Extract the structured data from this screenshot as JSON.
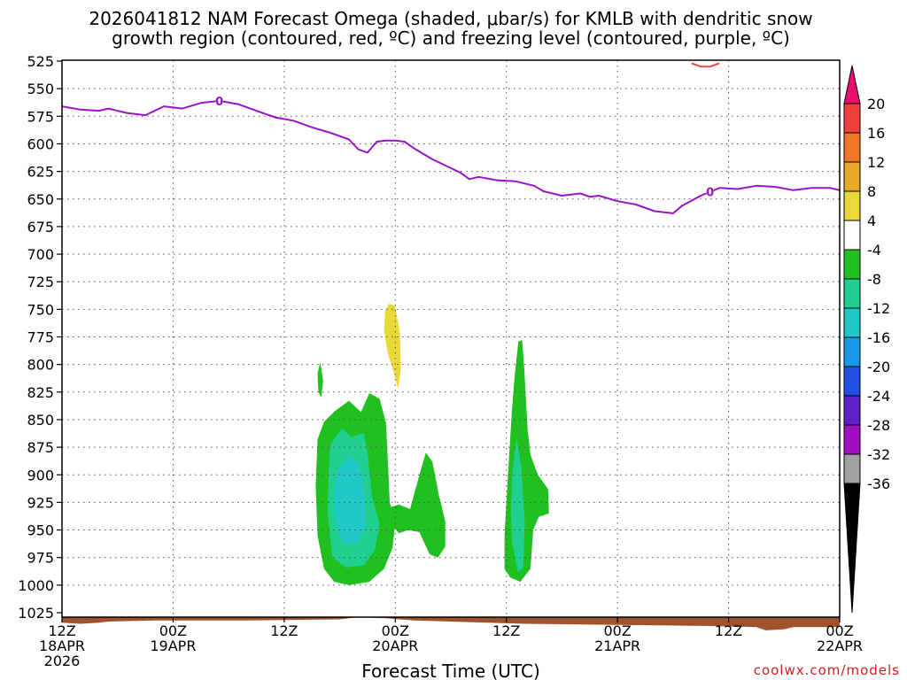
{
  "chart_data": {
    "type": "heatmap",
    "title_lines": [
      "2026041812 NAM Forecast Omega (shaded, μbar/s) for KMLB with dendritic snow",
      "growth region (contoured, red, ºC) and freezing level (contoured, purple, ºC)"
    ],
    "xlabel": "Forecast Time (UTC)",
    "credit": "coolwx.com/models",
    "x_hours_range": [
      0,
      84
    ],
    "y_pressure_range": [
      525,
      1025
    ],
    "y_ticks": [
      525,
      550,
      575,
      600,
      625,
      650,
      675,
      700,
      725,
      750,
      775,
      800,
      825,
      850,
      875,
      900,
      925,
      950,
      975,
      1000,
      1025
    ],
    "x_ticks": [
      {
        "hour": 0,
        "lines": [
          "12Z",
          "18APR",
          "2026"
        ]
      },
      {
        "hour": 12,
        "lines": [
          "00Z",
          "19APR"
        ]
      },
      {
        "hour": 24,
        "lines": [
          "12Z"
        ]
      },
      {
        "hour": 36,
        "lines": [
          "00Z",
          "20APR"
        ]
      },
      {
        "hour": 48,
        "lines": [
          "12Z"
        ]
      },
      {
        "hour": 60,
        "lines": [
          "00Z",
          "21APR"
        ]
      },
      {
        "hour": 72,
        "lines": [
          "12Z"
        ]
      },
      {
        "hour": 84,
        "lines": [
          "00Z",
          "22APR"
        ]
      }
    ],
    "colorbar": {
      "labels": [
        "20",
        "16",
        "12",
        "8",
        "4",
        "-4",
        "-8",
        "-12",
        "-16",
        "-20",
        "-24",
        "-28",
        "-32",
        "-36"
      ],
      "colors": [
        "#e8106e",
        "#f0403c",
        "#f07828",
        "#e8a828",
        "#e8d838",
        "#ffffff",
        "#20c020",
        "#20d090",
        "#20c8c8",
        "#1898e8",
        "#2050e0",
        "#6020c8",
        "#a010c0",
        "#a0a0a0",
        "#000000"
      ]
    },
    "freezing_level": {
      "color": "#9a14c8",
      "label": "0",
      "label_hours": [
        17,
        70
      ],
      "points": [
        [
          0,
          566
        ],
        [
          2,
          569
        ],
        [
          4,
          570
        ],
        [
          5,
          568
        ],
        [
          7,
          572
        ],
        [
          9,
          574
        ],
        [
          11,
          566
        ],
        [
          13,
          568
        ],
        [
          15,
          563
        ],
        [
          17,
          561
        ],
        [
          19,
          564
        ],
        [
          21,
          570
        ],
        [
          23,
          576
        ],
        [
          25,
          579
        ],
        [
          27,
          585
        ],
        [
          29,
          590
        ],
        [
          31,
          596
        ],
        [
          32,
          605
        ],
        [
          33,
          608
        ],
        [
          34,
          598
        ],
        [
          35,
          597
        ],
        [
          36,
          597
        ],
        [
          37,
          598
        ],
        [
          38,
          604
        ],
        [
          40,
          614
        ],
        [
          42,
          622
        ],
        [
          43,
          626
        ],
        [
          44,
          632
        ],
        [
          45,
          630
        ],
        [
          47,
          633
        ],
        [
          49,
          634
        ],
        [
          51,
          638
        ],
        [
          52,
          643
        ],
        [
          54,
          647
        ],
        [
          56,
          645
        ],
        [
          57,
          648
        ],
        [
          58,
          647
        ],
        [
          60,
          652
        ],
        [
          62,
          655
        ],
        [
          64,
          661
        ],
        [
          66,
          663
        ],
        [
          67,
          656
        ],
        [
          69,
          647
        ],
        [
          71,
          640
        ],
        [
          73,
          641
        ],
        [
          75,
          638
        ],
        [
          77,
          639
        ],
        [
          79,
          642
        ],
        [
          81,
          640
        ],
        [
          83,
          640
        ],
        [
          84,
          642
        ]
      ]
    },
    "dgz_contour": {
      "color": "#f04848",
      "points": [
        [
          68,
          527
        ],
        [
          69,
          530
        ],
        [
          70,
          530
        ],
        [
          71,
          527
        ]
      ]
    },
    "omega_areas": [
      {
        "value": -4,
        "color": "#20c020",
        "points": [
          [
            27.6,
            868
          ],
          [
            28.3,
            852
          ],
          [
            29.5,
            842
          ],
          [
            31.0,
            833
          ],
          [
            32.3,
            843
          ],
          [
            33.2,
            826
          ],
          [
            34.3,
            831
          ],
          [
            35.0,
            853
          ],
          [
            35.2,
            887
          ],
          [
            35.4,
            925
          ],
          [
            36.0,
            943
          ],
          [
            35.7,
            966
          ],
          [
            34.8,
            985
          ],
          [
            33.2,
            997
          ],
          [
            31.0,
            1000
          ],
          [
            29.4,
            997
          ],
          [
            28.3,
            985
          ],
          [
            27.6,
            955
          ],
          [
            27.4,
            910
          ]
        ]
      },
      {
        "value": -4,
        "color": "#20c020",
        "points": [
          [
            35.2,
            930
          ],
          [
            36.4,
            927
          ],
          [
            37.6,
            931
          ],
          [
            38.6,
            900
          ],
          [
            39.3,
            880
          ],
          [
            40.0,
            888
          ],
          [
            40.7,
            918
          ],
          [
            41.4,
            942
          ],
          [
            41.4,
            965
          ],
          [
            40.6,
            975
          ],
          [
            39.7,
            972
          ],
          [
            38.6,
            952
          ],
          [
            37.4,
            950
          ],
          [
            36.4,
            953
          ],
          [
            35.6,
            945
          ]
        ]
      },
      {
        "value": -4,
        "color": "#20c020",
        "points": [
          [
            48.6,
            841
          ],
          [
            48.9,
            810
          ],
          [
            49.3,
            779
          ],
          [
            49.7,
            778
          ],
          [
            49.9,
            800
          ],
          [
            50.3,
            860
          ],
          [
            50.6,
            882
          ],
          [
            51.4,
            900
          ],
          [
            52.5,
            913
          ],
          [
            52.6,
            935
          ],
          [
            51.5,
            938
          ],
          [
            50.9,
            950
          ],
          [
            50.6,
            985
          ],
          [
            49.5,
            997
          ],
          [
            48.4,
            993
          ],
          [
            47.8,
            985
          ],
          [
            47.8,
            955
          ],
          [
            48.1,
            910
          ]
        ]
      },
      {
        "value": -4,
        "color": "#20c020",
        "points": [
          [
            27.6,
            808
          ],
          [
            27.9,
            798
          ],
          [
            28.2,
            815
          ],
          [
            28.0,
            830
          ],
          [
            27.7,
            825
          ]
        ]
      },
      {
        "value": -8,
        "color": "#20d090",
        "points": [
          [
            29.0,
            872
          ],
          [
            30.2,
            858
          ],
          [
            31.3,
            866
          ],
          [
            32.6,
            862
          ],
          [
            33.0,
            880
          ],
          [
            33.5,
            920
          ],
          [
            34.3,
            945
          ],
          [
            33.8,
            968
          ],
          [
            32.6,
            982
          ],
          [
            30.7,
            984
          ],
          [
            29.2,
            975
          ],
          [
            28.7,
            935
          ],
          [
            28.8,
            895
          ]
        ]
      },
      {
        "value": -8,
        "color": "#20d090",
        "points": [
          [
            48.7,
            895
          ],
          [
            49.1,
            866
          ],
          [
            49.6,
            892
          ],
          [
            50.0,
            945
          ],
          [
            49.8,
            985
          ],
          [
            49.2,
            988
          ],
          [
            48.6,
            960
          ],
          [
            48.5,
            930
          ]
        ]
      },
      {
        "value": -12,
        "color": "#20c8c8",
        "points": [
          [
            29.8,
            895
          ],
          [
            31.0,
            883
          ],
          [
            32.1,
            890
          ],
          [
            32.7,
            920
          ],
          [
            32.8,
            948
          ],
          [
            31.8,
            962
          ],
          [
            30.3,
            962
          ],
          [
            29.5,
            940
          ],
          [
            29.4,
            915
          ]
        ]
      },
      {
        "value": 4,
        "color": "#e8d838",
        "points": [
          [
            34.9,
            752
          ],
          [
            35.3,
            745
          ],
          [
            36.0,
            747
          ],
          [
            36.5,
            772
          ],
          [
            36.6,
            805
          ],
          [
            36.3,
            822
          ],
          [
            35.8,
            806
          ],
          [
            35.2,
            790
          ],
          [
            34.8,
            770
          ]
        ]
      }
    ],
    "terrain": {
      "color": "#a0522d",
      "points": [
        [
          0,
          1034
        ],
        [
          2,
          1035
        ],
        [
          4,
          1034
        ],
        [
          5,
          1033
        ],
        [
          10,
          1032
        ],
        [
          20,
          1032
        ],
        [
          30,
          1031
        ],
        [
          32,
          1029
        ],
        [
          35,
          1030
        ],
        [
          38,
          1032
        ],
        [
          42,
          1033
        ],
        [
          50,
          1035
        ],
        [
          60,
          1036
        ],
        [
          70,
          1037
        ],
        [
          75,
          1038
        ],
        [
          76,
          1041
        ],
        [
          78,
          1040
        ],
        [
          79,
          1038
        ],
        [
          84,
          1038
        ]
      ]
    }
  }
}
